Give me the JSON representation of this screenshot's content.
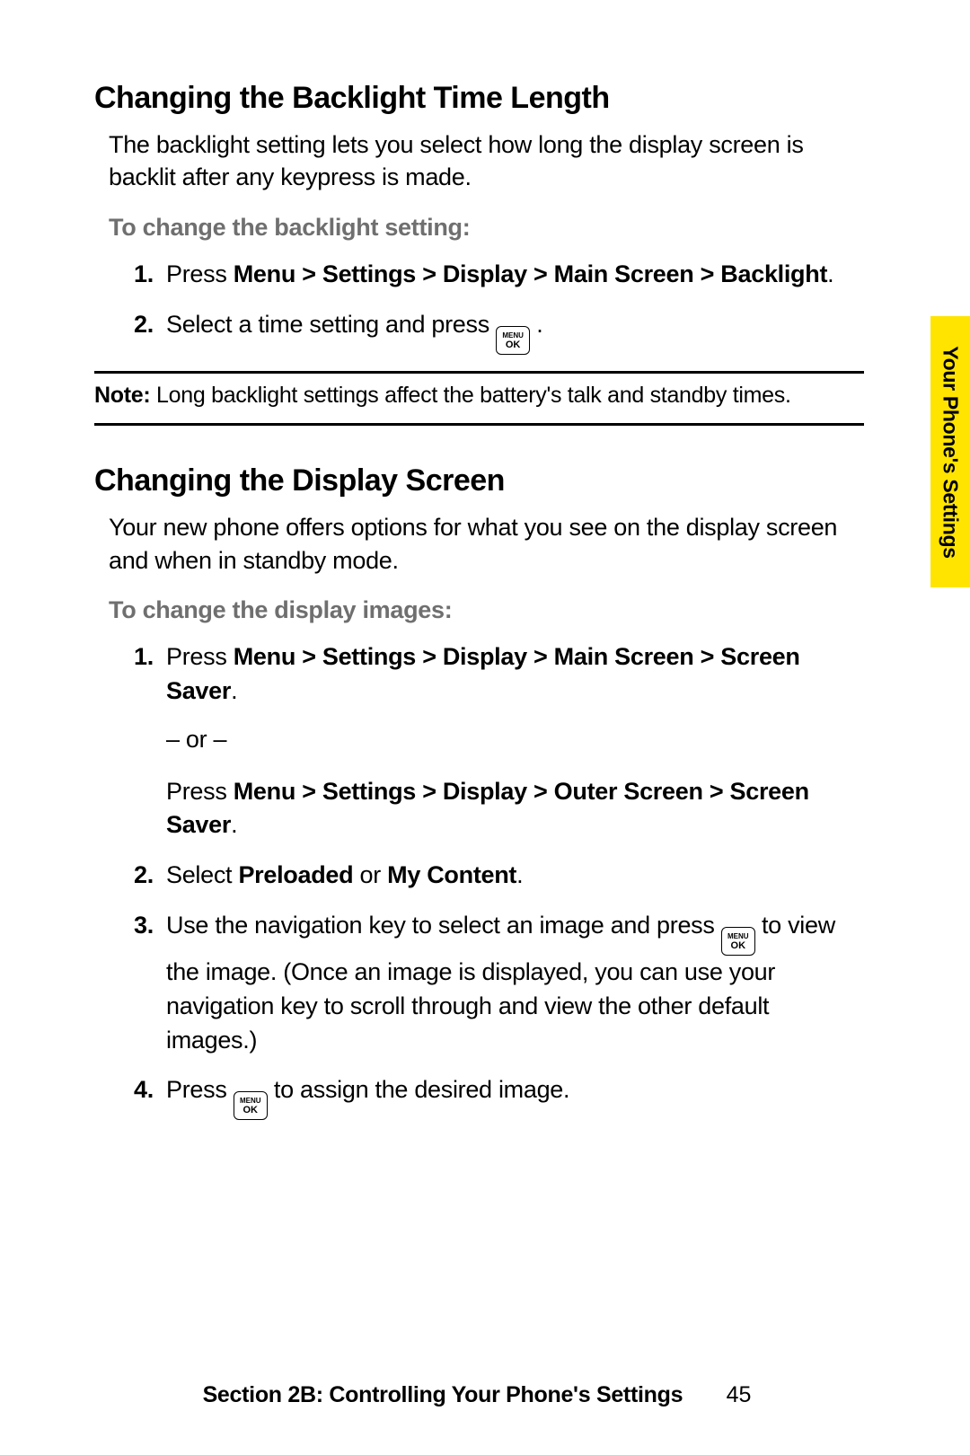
{
  "colors": {
    "background": "#ffffff",
    "text": "#000000",
    "subhead": "#6f6f6f",
    "tab_bg": "#ffe400",
    "rule": "#000000"
  },
  "typography": {
    "heading_fontsize_pt": 26,
    "body_fontsize_pt": 20,
    "note_fontsize_pt": 19,
    "footer_fontsize_pt": 19,
    "icon_top_fontsize_pt": 6,
    "icon_bottom_fontsize_pt": 8
  },
  "section1": {
    "heading": "Changing the Backlight Time Length",
    "body": "The backlight setting lets you select how long the display screen is backlit after any keypress is made.",
    "subhead": "To change the backlight setting:",
    "steps": [
      {
        "num": "1.",
        "pre": "Press ",
        "bold": "Menu > Settings > Display > Main Screen > Backlight",
        "post": "."
      },
      {
        "num": "2.",
        "pre": "Select a time setting and press ",
        "icon": true,
        "post": " ."
      }
    ]
  },
  "note": {
    "label": "Note:",
    "text": " Long backlight settings affect the battery's talk and standby times."
  },
  "section2": {
    "heading": "Changing the Display Screen",
    "body": "Your new phone offers options for what you see on the display screen and when in standby mode.",
    "subhead": "To change the display images:",
    "step1": {
      "num": "1.",
      "line1_pre": "Press ",
      "line1_bold": "Menu > Settings > Display > Main Screen > Screen Saver",
      "line1_post": ".",
      "or": "– or –",
      "line2_pre": "Press ",
      "line2_bold": "Menu > Settings > Display > Outer Screen > Screen Saver",
      "line2_post": "."
    },
    "step2": {
      "num": "2.",
      "pre": "Select ",
      "bold1": "Preloaded",
      "mid": " or ",
      "bold2": "My Content",
      "post": "."
    },
    "step3": {
      "num": "3.",
      "pre": "Use the navigation key to select an image and press ",
      "icon": true,
      "post": " to view the image. (Once an image is displayed, you can use your navigation key to scroll through and view the other default images.)"
    },
    "step4": {
      "num": "4.",
      "pre": "Press ",
      "icon": true,
      "post": " to assign the desired image."
    }
  },
  "icon": {
    "top": "MENU",
    "bottom": "OK"
  },
  "side_tab": "Your Phone's Settings",
  "footer": {
    "text": "Section 2B: Controlling Your Phone's Settings",
    "page": "45"
  }
}
